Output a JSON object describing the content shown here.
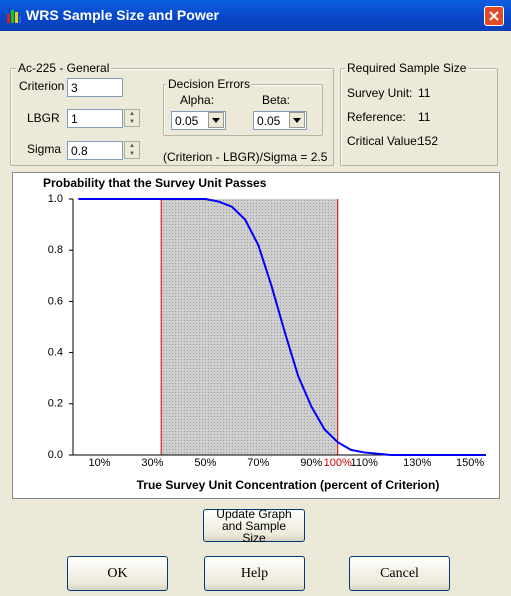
{
  "window": {
    "title": "WRS Sample Size and Power"
  },
  "general": {
    "title": "Ac-225 - General",
    "criterion_label": "Criterion",
    "criterion_value": "3",
    "lbgr_label": "LBGR",
    "lbgr_value": "1",
    "sigma_label": "Sigma",
    "sigma_value": "0.8",
    "formula": "(Criterion - LBGR)/Sigma = 2.5"
  },
  "decision_errors": {
    "title": "Decision Errors",
    "alpha_label": "Alpha:",
    "alpha_value": "0.05",
    "beta_label": "Beta:",
    "beta_value": "0.05"
  },
  "required": {
    "title": "Required Sample Size",
    "rows": [
      [
        "Survey Unit:",
        "11"
      ],
      [
        "Reference:",
        "11"
      ],
      [
        "Critical Value:",
        "152"
      ]
    ]
  },
  "chart_data": {
    "type": "line",
    "title": "Probability that the Survey Unit Passes",
    "x_label": "True Survey Unit Concentration (percent of Criterion)",
    "x": [
      2,
      40,
      50,
      55,
      60,
      65,
      70,
      75,
      80,
      85,
      90,
      95,
      100,
      105,
      110,
      120,
      130,
      140,
      150,
      156
    ],
    "values": [
      1,
      1,
      1,
      0.99,
      0.97,
      0.92,
      0.82,
      0.66,
      0.48,
      0.31,
      0.19,
      0.1,
      0.05,
      0.02,
      0.01,
      0,
      0,
      0,
      0,
      0
    ],
    "color": "#0000ff",
    "shaded_region": [
      33.3,
      100
    ],
    "xlim": [
      0,
      156
    ],
    "ylim": [
      0,
      1
    ],
    "xticks": [
      {
        "value": 10,
        "label": "10%"
      },
      {
        "value": 30,
        "label": "30%"
      },
      {
        "value": 50,
        "label": "50%"
      },
      {
        "value": 70,
        "label": "70%"
      },
      {
        "value": 90,
        "label": "90%"
      },
      {
        "value": 100,
        "label": "100%"
      },
      {
        "value": 110,
        "label": "110%"
      },
      {
        "value": 130,
        "label": "130%"
      },
      {
        "value": 150,
        "label": "150%"
      }
    ],
    "yticks": [
      {
        "value": 0,
        "label": "0.0"
      },
      0.2,
      0.4,
      0.6,
      0.8,
      {
        "value": 1,
        "label": "1.0"
      }
    ]
  },
  "buttons": {
    "update": "Update Graph and Sample Size",
    "ok": "OK",
    "help": "Help",
    "cancel": "Cancel"
  }
}
